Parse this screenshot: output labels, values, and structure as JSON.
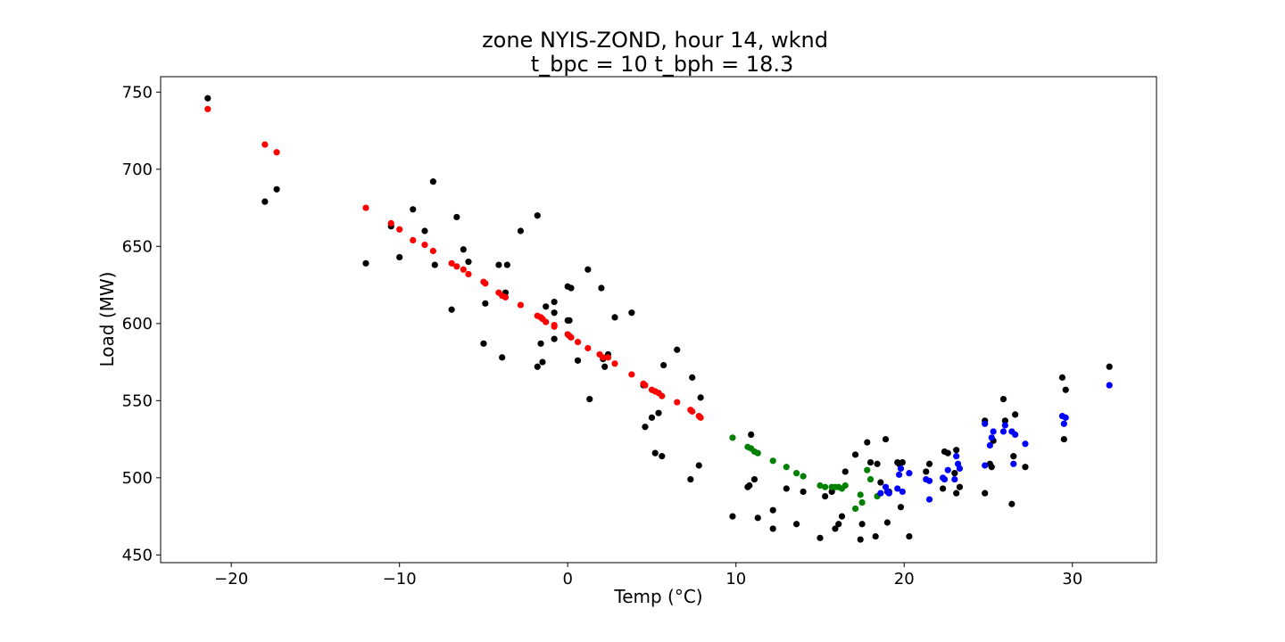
{
  "chart_data": {
    "type": "scatter",
    "title": "zone NYIS-ZOND, hour 14, wknd",
    "subtitle": "t_bpc = 10  t_bph = 18.3",
    "xlabel": "Temp (°C)",
    "ylabel": "Load (MW)",
    "xlim": [
      -24.2,
      35
    ],
    "ylim": [
      445,
      760
    ],
    "xticks": [
      -20,
      -10,
      0,
      10,
      20,
      30
    ],
    "yticks": [
      450,
      500,
      550,
      600,
      650,
      700,
      750
    ],
    "grid": false,
    "colors": {
      "actual": "#000000",
      "heating": "#ff0000",
      "base": "#008000",
      "cooling": "#0000ff"
    },
    "series": [
      {
        "color": "#000000",
        "x": [
          -21.4,
          -18,
          -17.3,
          -12,
          -10.5,
          -10,
          -9.2,
          -8.5,
          -8,
          -7.9,
          -6.9,
          -6.6,
          -6.2,
          -5.9,
          -5,
          -4.9,
          -4.1,
          -3.9,
          -3.7,
          -3.6,
          -2.8,
          -1.8,
          -1.8,
          -1.6,
          -1.5,
          -1.3,
          -0.8,
          -0.8,
          -0.8,
          0,
          0,
          0.1,
          0.2,
          0.6,
          1.2,
          1.3,
          2,
          2.1,
          2.2,
          2.4,
          2.8,
          3.8,
          4.5,
          4.6,
          5,
          5.2,
          5.4,
          5.6,
          5.7,
          6.5,
          7.3,
          7.4,
          7.8,
          7.9,
          9.8,
          10.7,
          10.8,
          10.9,
          11.1,
          11.3,
          12.2,
          12.2,
          13,
          13.6,
          14,
          15,
          15.3,
          15.7,
          15.9,
          16.1,
          16.3,
          16.5,
          17.1,
          17.4,
          17.5,
          17.8,
          18,
          18.3,
          18.4,
          18.6,
          18.9,
          19,
          19.1,
          19.6,
          19.7,
          19.8,
          19.9,
          20.3,
          21.3,
          21.5,
          22.3,
          22.4,
          22.6,
          23,
          23.1,
          23.1,
          23.3,
          24.8,
          24.8,
          25.1,
          25.2,
          25.3,
          25.9,
          26,
          26.4,
          26.5,
          26.6,
          27.2,
          29.4,
          29.5,
          29.6,
          32.2
        ],
        "y": [
          746,
          679,
          687,
          639,
          663,
          643,
          674,
          660,
          692,
          638,
          609,
          669,
          648,
          640,
          587,
          613,
          638,
          578,
          620,
          638,
          660,
          572,
          670,
          587,
          575,
          611,
          614,
          590,
          607,
          624,
          602,
          602,
          623,
          576,
          635,
          551,
          623,
          577,
          572,
          580,
          604,
          607,
          560,
          533,
          539,
          516,
          542,
          514,
          573,
          583,
          499,
          565,
          508,
          552,
          475,
          494,
          495,
          528,
          499,
          474,
          467,
          479,
          493,
          470,
          491,
          461,
          488,
          491,
          467,
          470,
          475,
          504,
          515,
          460,
          470,
          523,
          510,
          462,
          509,
          497,
          525,
          471,
          491,
          510,
          509,
          481,
          510,
          462,
          504,
          509,
          493,
          517,
          516,
          503,
          490,
          518,
          494,
          490,
          537,
          509,
          507,
          524,
          551,
          537,
          483,
          514,
          541,
          507,
          565,
          525,
          557,
          572
        ]
      },
      {
        "color": "#ff0000",
        "x": [
          -21.4,
          -18,
          -17.3,
          -12,
          -10.5,
          -10,
          -9.2,
          -8.5,
          -8,
          -6.9,
          -6.6,
          -6.2,
          -5.9,
          -5,
          -4.9,
          -4.1,
          -3.9,
          -3.7,
          -2.8,
          -1.8,
          -1.6,
          -1.5,
          -1.3,
          -0.8,
          -0.8,
          0,
          0.1,
          0.2,
          0.6,
          1.2,
          1.9,
          2.1,
          2.4,
          2.8,
          3.8,
          4.5,
          4.6,
          5,
          5.2,
          5.4,
          5.6,
          6.5,
          7.3,
          7.4,
          7.8,
          7.9
        ],
        "y": [
          739,
          716,
          711,
          675,
          665,
          661,
          654,
          651,
          647,
          639,
          637,
          635,
          632,
          627,
          626,
          620,
          618,
          617,
          612,
          605,
          604,
          603,
          601,
          599,
          598,
          593,
          592,
          591,
          588,
          584,
          580,
          578,
          578,
          574,
          567,
          561,
          560,
          557,
          556,
          555,
          553,
          549,
          544,
          543,
          540,
          539
        ]
      },
      {
        "color": "#008000",
        "x": [
          9.8,
          10.7,
          10.9,
          11.1,
          11.3,
          12.2,
          13,
          13.6,
          14,
          15,
          15.3,
          15.7,
          15.9,
          16.1,
          16.3,
          16.5,
          17.1,
          17.4,
          17.5,
          17.8,
          18,
          18.4
        ],
        "y": [
          526,
          520,
          519,
          517,
          516,
          511,
          507,
          503,
          501,
          495,
          494,
          494,
          494,
          494,
          493,
          495,
          480,
          489,
          484,
          505,
          499,
          488
        ]
      },
      {
        "color": "#0000ff",
        "x": [
          18.6,
          18.9,
          19,
          19.1,
          19.6,
          19.7,
          19.8,
          19.9,
          20.3,
          21.3,
          21.5,
          21.5,
          22.3,
          22.4,
          22.6,
          23,
          23.1,
          23.2,
          23.3,
          24.8,
          24.8,
          25.1,
          25.2,
          25.3,
          25.9,
          26,
          26.4,
          26.5,
          26.6,
          27.2,
          29.4,
          29.5,
          29.6,
          32.2
        ],
        "y": [
          490,
          494,
          491,
          490,
          493,
          502,
          506,
          491,
          503,
          499,
          498,
          486,
          500,
          499,
          505,
          499,
          514,
          509,
          506,
          535,
          508,
          521,
          526,
          530,
          530,
          534,
          530,
          509,
          528,
          522,
          540,
          535,
          539,
          560
        ]
      }
    ]
  }
}
